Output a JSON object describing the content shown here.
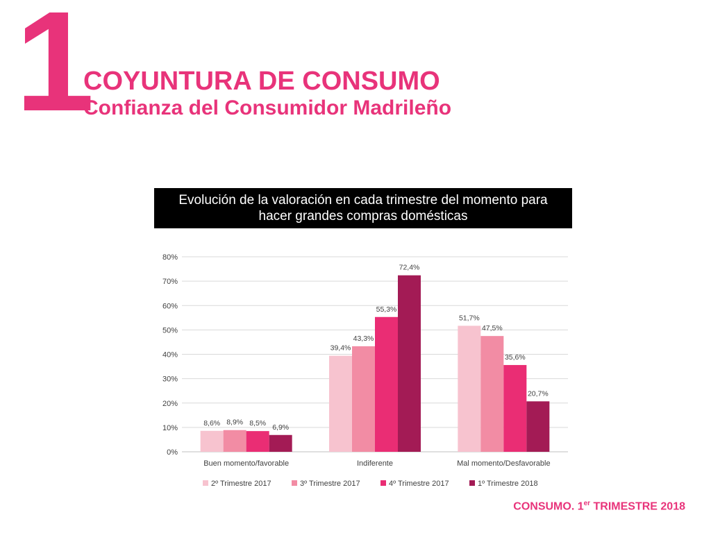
{
  "header": {
    "section_number": "1",
    "title": "COYUNTURA DE CONSUMO",
    "subtitle": "Confianza del Consumidor Madrileño"
  },
  "chart_header": "Evolución de la valoración en cada trimestre del momento para hacer grandes compras domésticas",
  "footer": {
    "prefix": "CONSUMO. 1",
    "superscript": "er",
    "suffix": " TRIMESTRE 2018"
  },
  "chart_data": {
    "type": "bar",
    "categories": [
      "Buen momento/favorable",
      "Indiferente",
      "Mal momento/Desfavorable"
    ],
    "series": [
      {
        "name": "2º Trimestre 2017",
        "color": "#f7c3cf",
        "values": [
          8.6,
          39.4,
          51.7
        ],
        "labels": [
          "8,6%",
          "39,4%",
          "51,7%"
        ]
      },
      {
        "name": "3º Trimestre 2017",
        "color": "#f28ca4",
        "values": [
          8.9,
          43.3,
          47.5
        ],
        "labels": [
          "8,9%",
          "43,3%",
          "47,5%"
        ]
      },
      {
        "name": "4º Trimestre 2017",
        "color": "#ea2d74",
        "values": [
          8.5,
          55.3,
          35.6
        ],
        "labels": [
          "8,5%",
          "55,3%",
          "35,6%"
        ]
      },
      {
        "name": "1º Trimestre 2018",
        "color": "#a31b55",
        "values": [
          6.9,
          72.4,
          20.7
        ],
        "labels": [
          "6,9%",
          "72,4%",
          "20,7%"
        ]
      }
    ],
    "y_ticks": [
      "0%",
      "10%",
      "20%",
      "30%",
      "40%",
      "50%",
      "60%",
      "70%",
      "80%"
    ],
    "ylim": [
      0,
      80
    ],
    "grid": true,
    "legend_position": "bottom"
  },
  "colors": {
    "accent": "#e8337a",
    "grid": "#d9d9d9",
    "axis_text": "#404040"
  }
}
